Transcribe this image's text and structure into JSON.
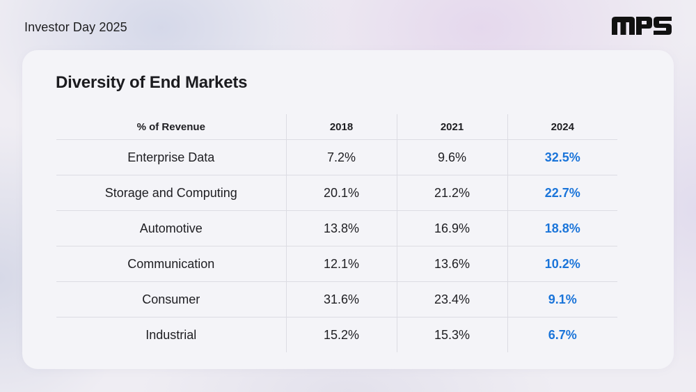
{
  "header": {
    "event_title": "Investor Day 2025",
    "logo_text": "MPS"
  },
  "slide": {
    "title": "Diversity of End Markets",
    "table": {
      "columns": [
        "% of Revenue",
        "2018",
        "2021",
        "2024"
      ],
      "rows": [
        {
          "market": "Enterprise Data",
          "y2018": "7.2%",
          "y2021": "9.6%",
          "y2024": "32.5%"
        },
        {
          "market": "Storage and Computing",
          "y2018": "20.1%",
          "y2021": "21.2%",
          "y2024": "22.7%"
        },
        {
          "market": "Automotive",
          "y2018": "13.8%",
          "y2021": "16.9%",
          "y2024": "18.8%"
        },
        {
          "market": "Communication",
          "y2018": "12.1%",
          "y2021": "13.6%",
          "y2024": "10.2%"
        },
        {
          "market": "Consumer",
          "y2018": "31.6%",
          "y2021": "23.4%",
          "y2024": "9.1%"
        },
        {
          "market": "Industrial",
          "y2018": "15.2%",
          "y2021": "15.3%",
          "y2024": "6.7%"
        }
      ]
    }
  },
  "colors": {
    "highlight": "#1a74d9",
    "text": "#1e1e22",
    "logo": "#111111"
  }
}
